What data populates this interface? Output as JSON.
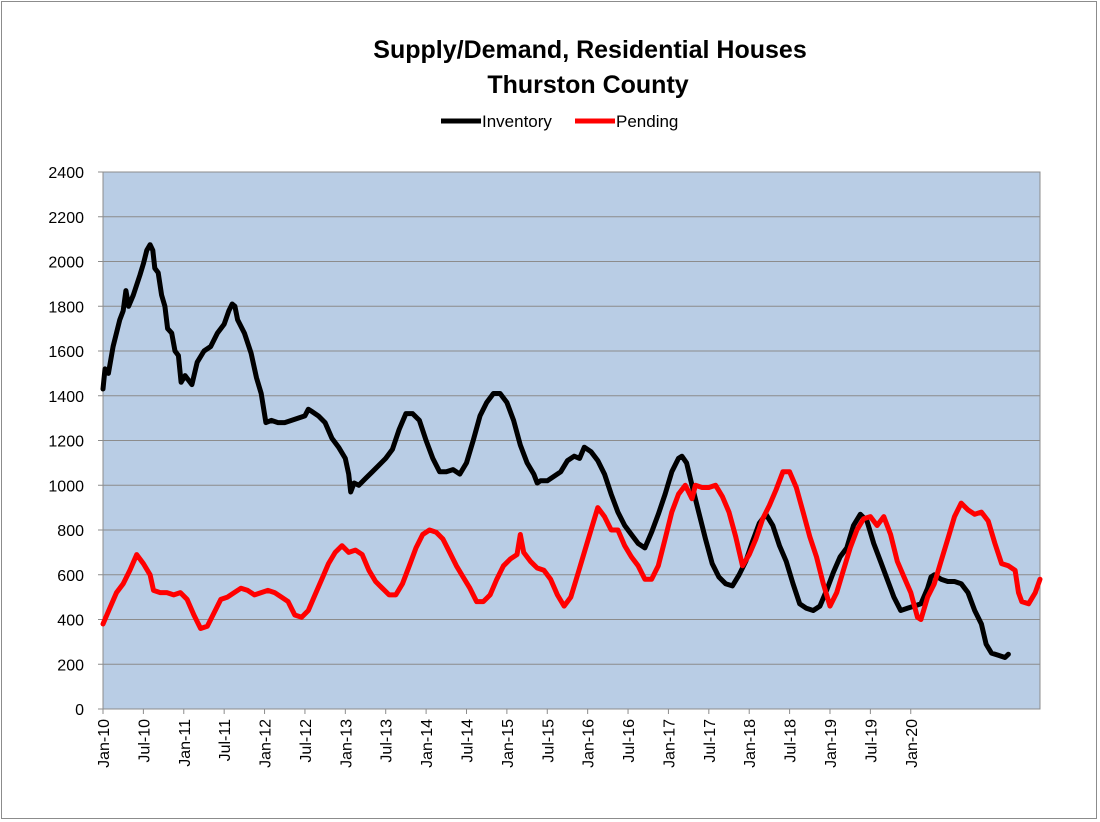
{
  "chart_data": {
    "type": "line",
    "title": "Supply/Demand, Residential Houses",
    "subtitle": "Thurston County",
    "xlabel": "",
    "ylabel": "",
    "ylim": [
      0,
      2400
    ],
    "yticks": [
      0,
      200,
      400,
      600,
      800,
      1000,
      1200,
      1400,
      1600,
      1800,
      2000,
      2200,
      2400
    ],
    "x_tick_labels": [
      "Jan-10",
      "Jul-10",
      "Jan-11",
      "Jul-11",
      "Jan-12",
      "Jul-12",
      "Jan-13",
      "Jul-13",
      "Jan-14",
      "Jul-14",
      "Jan-15",
      "Jul-15",
      "Jan-16",
      "Jul-16",
      "Jan-17",
      "Jul-17",
      "Jan-18",
      "Jul-18",
      "Jan-19",
      "Jul-19",
      "Jan-20"
    ],
    "x_range_months": [
      0,
      122.5
    ],
    "grid": true,
    "legend_position": "top-center",
    "plot_background": "#b9cde5",
    "series": [
      {
        "name": "Inventory",
        "color": "#000000",
        "points": [
          [
            0,
            1430
          ],
          [
            0.3,
            1520
          ],
          [
            0.8,
            1500
          ],
          [
            1.5,
            1620
          ],
          [
            2.5,
            1740
          ],
          [
            3,
            1780
          ],
          [
            3.4,
            1870
          ],
          [
            3.8,
            1800
          ],
          [
            4.5,
            1850
          ],
          [
            5.5,
            1940
          ],
          [
            6,
            1990
          ],
          [
            6.5,
            2050
          ],
          [
            7,
            2075
          ],
          [
            7.4,
            2050
          ],
          [
            7.7,
            1970
          ],
          [
            8.2,
            1950
          ],
          [
            8.7,
            1850
          ],
          [
            9.2,
            1800
          ],
          [
            9.6,
            1700
          ],
          [
            10.2,
            1680
          ],
          [
            10.7,
            1600
          ],
          [
            11.2,
            1580
          ],
          [
            11.6,
            1460
          ],
          [
            12.2,
            1490
          ],
          [
            12.7,
            1470
          ],
          [
            13.2,
            1450
          ],
          [
            14,
            1550
          ],
          [
            15,
            1600
          ],
          [
            16,
            1620
          ],
          [
            17,
            1680
          ],
          [
            18,
            1720
          ],
          [
            18.7,
            1780
          ],
          [
            19.2,
            1810
          ],
          [
            19.6,
            1800
          ],
          [
            20,
            1740
          ],
          [
            21,
            1680
          ],
          [
            22,
            1590
          ],
          [
            22.8,
            1480
          ],
          [
            23.5,
            1410
          ],
          [
            24.2,
            1280
          ],
          [
            25,
            1290
          ],
          [
            26,
            1280
          ],
          [
            27,
            1280
          ],
          [
            28,
            1290
          ],
          [
            29,
            1300
          ],
          [
            30,
            1310
          ],
          [
            30.5,
            1340
          ],
          [
            31,
            1330
          ],
          [
            32,
            1310
          ],
          [
            33,
            1280
          ],
          [
            34,
            1210
          ],
          [
            35,
            1170
          ],
          [
            36,
            1120
          ],
          [
            36.5,
            1050
          ],
          [
            36.8,
            970
          ],
          [
            37.3,
            1010
          ],
          [
            38,
            1000
          ],
          [
            39,
            1030
          ],
          [
            40,
            1060
          ],
          [
            41,
            1090
          ],
          [
            42,
            1120
          ],
          [
            43,
            1160
          ],
          [
            44,
            1250
          ],
          [
            45,
            1320
          ],
          [
            46,
            1320
          ],
          [
            47,
            1290
          ],
          [
            48,
            1200
          ],
          [
            49,
            1120
          ],
          [
            50,
            1060
          ],
          [
            51,
            1060
          ],
          [
            52,
            1070
          ],
          [
            53,
            1050
          ],
          [
            54,
            1100
          ],
          [
            55,
            1200
          ],
          [
            56,
            1310
          ],
          [
            57,
            1370
          ],
          [
            58,
            1410
          ],
          [
            59,
            1410
          ],
          [
            60,
            1370
          ],
          [
            61,
            1290
          ],
          [
            62,
            1180
          ],
          [
            63,
            1100
          ],
          [
            64,
            1050
          ],
          [
            64.5,
            1010
          ],
          [
            65,
            1020
          ],
          [
            66,
            1020
          ],
          [
            67,
            1040
          ],
          [
            68,
            1060
          ],
          [
            69,
            1110
          ],
          [
            70,
            1130
          ],
          [
            70.8,
            1120
          ],
          [
            71.5,
            1170
          ],
          [
            72.5,
            1150
          ],
          [
            73.5,
            1110
          ],
          [
            74.5,
            1050
          ],
          [
            75.5,
            960
          ],
          [
            76.5,
            880
          ],
          [
            77.5,
            820
          ],
          [
            78.5,
            780
          ],
          [
            79.5,
            740
          ],
          [
            80.5,
            720
          ],
          [
            81.5,
            790
          ],
          [
            82.5,
            870
          ],
          [
            83.5,
            960
          ],
          [
            84.5,
            1060
          ],
          [
            85.5,
            1120
          ],
          [
            86,
            1130
          ],
          [
            86.7,
            1100
          ],
          [
            87.5,
            1000
          ],
          [
            88.5,
            880
          ],
          [
            89.5,
            760
          ],
          [
            90.5,
            650
          ],
          [
            91.5,
            590
          ],
          [
            92.5,
            560
          ],
          [
            93.5,
            550
          ],
          [
            94.5,
            600
          ],
          [
            95.5,
            660
          ],
          [
            96.5,
            750
          ],
          [
            97.5,
            830
          ],
          [
            98.5,
            870
          ],
          [
            99.5,
            820
          ],
          [
            100.5,
            730
          ],
          [
            101.5,
            660
          ],
          [
            102.5,
            560
          ],
          [
            103.5,
            470
          ],
          [
            104.5,
            450
          ],
          [
            105.5,
            440
          ],
          [
            106.5,
            460
          ],
          [
            107.5,
            530
          ],
          [
            108.5,
            610
          ],
          [
            109.5,
            680
          ],
          [
            110.5,
            720
          ],
          [
            111.5,
            820
          ],
          [
            112.5,
            870
          ],
          [
            113.5,
            840
          ],
          [
            114.5,
            740
          ],
          [
            115.5,
            660
          ],
          [
            116.5,
            580
          ],
          [
            117.5,
            500
          ],
          [
            118.5,
            440
          ],
          [
            119.5,
            450
          ],
          [
            120.5,
            460
          ],
          [
            121.5,
            470
          ],
          [
            122.5,
            540
          ],
          [
            123,
            590
          ],
          [
            123.5,
            600
          ],
          [
            124.5,
            580
          ],
          [
            125.5,
            570
          ],
          [
            126.5,
            570
          ],
          [
            127.5,
            560
          ],
          [
            128.5,
            520
          ],
          [
            129.5,
            440
          ],
          [
            130.5,
            380
          ],
          [
            131.2,
            290
          ],
          [
            132,
            250
          ],
          [
            133,
            240
          ],
          [
            134,
            230
          ],
          [
            134.5,
            245
          ]
        ]
      },
      {
        "name": "Pending",
        "color": "#ff0000",
        "points": [
          [
            0,
            380
          ],
          [
            1,
            450
          ],
          [
            2,
            520
          ],
          [
            3,
            560
          ],
          [
            4,
            620
          ],
          [
            5,
            690
          ],
          [
            6,
            650
          ],
          [
            7,
            600
          ],
          [
            7.5,
            530
          ],
          [
            8.5,
            520
          ],
          [
            9.5,
            520
          ],
          [
            10.5,
            510
          ],
          [
            11.5,
            520
          ],
          [
            12.5,
            490
          ],
          [
            13.5,
            420
          ],
          [
            14.5,
            360
          ],
          [
            15.5,
            370
          ],
          [
            16.5,
            430
          ],
          [
            17.5,
            490
          ],
          [
            18.5,
            500
          ],
          [
            19.5,
            520
          ],
          [
            20.5,
            540
          ],
          [
            21.5,
            530
          ],
          [
            22.5,
            510
          ],
          [
            23.5,
            520
          ],
          [
            24.5,
            530
          ],
          [
            25.5,
            520
          ],
          [
            26.5,
            500
          ],
          [
            27.5,
            480
          ],
          [
            28.5,
            420
          ],
          [
            29.5,
            410
          ],
          [
            30.5,
            440
          ],
          [
            31.5,
            510
          ],
          [
            32.5,
            580
          ],
          [
            33.5,
            650
          ],
          [
            34.5,
            700
          ],
          [
            35.5,
            730
          ],
          [
            36.5,
            700
          ],
          [
            37.5,
            710
          ],
          [
            38.5,
            690
          ],
          [
            39.5,
            620
          ],
          [
            40.5,
            570
          ],
          [
            41.5,
            540
          ],
          [
            42.5,
            510
          ],
          [
            43.5,
            510
          ],
          [
            44.5,
            560
          ],
          [
            45.5,
            640
          ],
          [
            46.5,
            720
          ],
          [
            47.5,
            780
          ],
          [
            48.5,
            800
          ],
          [
            49.5,
            790
          ],
          [
            50.5,
            760
          ],
          [
            51.5,
            700
          ],
          [
            52.5,
            640
          ],
          [
            53.5,
            590
          ],
          [
            54.5,
            540
          ],
          [
            55.5,
            480
          ],
          [
            56.5,
            480
          ],
          [
            57.5,
            510
          ],
          [
            58.5,
            580
          ],
          [
            59.5,
            640
          ],
          [
            60.5,
            670
          ],
          [
            61.5,
            690
          ],
          [
            62,
            780
          ],
          [
            62.5,
            700
          ],
          [
            63.5,
            660
          ],
          [
            64.5,
            630
          ],
          [
            65.5,
            620
          ],
          [
            66.5,
            580
          ],
          [
            67.5,
            510
          ],
          [
            68.5,
            460
          ],
          [
            69.5,
            500
          ],
          [
            70.5,
            600
          ],
          [
            71.5,
            700
          ],
          [
            72.5,
            800
          ],
          [
            73.5,
            900
          ],
          [
            74.5,
            860
          ],
          [
            75.5,
            800
          ],
          [
            76.5,
            800
          ],
          [
            77.5,
            730
          ],
          [
            78.5,
            680
          ],
          [
            79.5,
            640
          ],
          [
            80.5,
            580
          ],
          [
            81.5,
            580
          ],
          [
            82.5,
            640
          ],
          [
            83.5,
            760
          ],
          [
            84.5,
            880
          ],
          [
            85.5,
            960
          ],
          [
            86.5,
            1000
          ],
          [
            87.5,
            940
          ],
          [
            88,
            1000
          ],
          [
            89,
            990
          ],
          [
            90,
            990
          ],
          [
            91,
            1000
          ],
          [
            92,
            950
          ],
          [
            93,
            880
          ],
          [
            94,
            770
          ],
          [
            95,
            640
          ],
          [
            96,
            690
          ],
          [
            97,
            760
          ],
          [
            98,
            850
          ],
          [
            99,
            910
          ],
          [
            100,
            980
          ],
          [
            101,
            1060
          ],
          [
            102,
            1060
          ],
          [
            103,
            990
          ],
          [
            104,
            880
          ],
          [
            105,
            770
          ],
          [
            106,
            680
          ],
          [
            107,
            560
          ],
          [
            108,
            460
          ],
          [
            109,
            520
          ],
          [
            110,
            620
          ],
          [
            111,
            720
          ],
          [
            112,
            800
          ],
          [
            113,
            850
          ],
          [
            114,
            860
          ],
          [
            115,
            820
          ],
          [
            116,
            860
          ],
          [
            117,
            780
          ],
          [
            118,
            660
          ],
          [
            119,
            590
          ],
          [
            120,
            520
          ],
          [
            121,
            410
          ],
          [
            121.5,
            400
          ],
          [
            122.5,
            500
          ],
          [
            123.5,
            560
          ],
          [
            124.5,
            660
          ],
          [
            125.5,
            760
          ],
          [
            126.5,
            860
          ],
          [
            127.5,
            920
          ],
          [
            128.5,
            890
          ],
          [
            129.5,
            870
          ],
          [
            130.5,
            880
          ],
          [
            131.5,
            840
          ],
          [
            132.5,
            740
          ],
          [
            133.5,
            650
          ],
          [
            134.5,
            640
          ],
          [
            135.5,
            620
          ],
          [
            136,
            520
          ],
          [
            136.5,
            480
          ],
          [
            137.5,
            470
          ],
          [
            138.5,
            520
          ],
          [
            139.2,
            580
          ]
        ]
      }
    ]
  }
}
